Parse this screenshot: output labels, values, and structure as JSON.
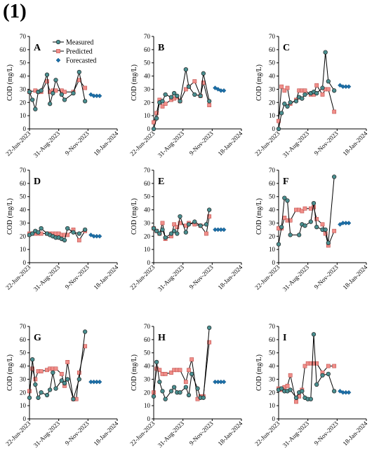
{
  "figure_label": "(1)",
  "colors": {
    "measured_fill": "#4a8f90",
    "predicted_fill": "#f08f8a",
    "forecast_fill": "#1c6fa8",
    "marker_stroke": "#222222"
  },
  "chart_data": [
    {
      "panel": "A",
      "type": "line",
      "ylabel": "COD (mg/L)",
      "ylim": [
        0,
        70
      ],
      "yticks": [
        0,
        10,
        20,
        30,
        40,
        50,
        60,
        70
      ],
      "xticks": [
        "22-Jun-2023",
        "31-Aug-2023",
        "9-Nov-2023",
        "18-Jan-2024"
      ],
      "legend": [
        "Measured",
        "Predicted",
        "Forecasted"
      ],
      "legend_position": "top-center",
      "series": [
        {
          "name": "Measured",
          "x": [
            "2023-06-22",
            "2023-06-29",
            "2023-07-06",
            "2023-07-13",
            "2023-07-20",
            "2023-08-03",
            "2023-08-10",
            "2023-08-17",
            "2023-08-24",
            "2023-09-07",
            "2023-09-14",
            "2023-10-05",
            "2023-10-19",
            "2023-11-02"
          ],
          "y": [
            28,
            22,
            15,
            28,
            29,
            41,
            19,
            27,
            37,
            26,
            22,
            27,
            43,
            21
          ]
        },
        {
          "name": "Predicted",
          "x": [
            "2023-06-22",
            "2023-07-06",
            "2023-07-13",
            "2023-07-20",
            "2023-08-03",
            "2023-08-10",
            "2023-08-17",
            "2023-08-24",
            "2023-09-07",
            "2023-09-14",
            "2023-10-05",
            "2023-10-19",
            "2023-11-02"
          ],
          "y": [
            28,
            29,
            28,
            28,
            36,
            28,
            29,
            29,
            29,
            28,
            28,
            37,
            31
          ]
        },
        {
          "name": "Forecasted",
          "x": [
            "2023-11-16",
            "2023-11-23",
            "2023-11-30",
            "2023-12-07"
          ],
          "y": [
            26,
            25,
            25,
            25
          ]
        }
      ]
    },
    {
      "panel": "B",
      "type": "line",
      "ylabel": "COD (mg/L)",
      "ylim": [
        0,
        70
      ],
      "yticks": [
        0,
        10,
        20,
        30,
        40,
        50,
        60,
        70
      ],
      "xticks": [
        "22-Jun-2023",
        "31-Aug-2023",
        "9-Nov-2023",
        "18-Jan-2024"
      ],
      "series": [
        {
          "name": "Measured",
          "x": [
            "2023-06-22",
            "2023-06-29",
            "2023-07-06",
            "2023-07-13",
            "2023-07-20",
            "2023-08-03",
            "2023-08-10",
            "2023-08-17",
            "2023-08-24",
            "2023-09-07",
            "2023-09-14",
            "2023-09-28",
            "2023-10-12",
            "2023-10-19",
            "2023-11-02"
          ],
          "y": [
            0,
            8,
            20,
            21,
            26,
            24,
            27,
            25,
            21,
            45,
            32,
            26,
            25,
            42,
            21
          ]
        },
        {
          "name": "Predicted",
          "x": [
            "2023-06-22",
            "2023-06-29",
            "2023-07-06",
            "2023-07-13",
            "2023-07-20",
            "2023-08-03",
            "2023-08-10",
            "2023-08-17",
            "2023-08-24",
            "2023-09-07",
            "2023-09-14",
            "2023-09-28",
            "2023-10-12",
            "2023-10-19",
            "2023-11-02"
          ],
          "y": [
            5,
            12,
            22,
            17,
            19,
            22,
            23,
            24,
            21,
            30,
            32,
            36,
            25,
            35,
            18
          ]
        },
        {
          "name": "Forecasted",
          "x": [
            "2023-11-16",
            "2023-11-23",
            "2023-11-30",
            "2023-12-07"
          ],
          "y": [
            31,
            30,
            29,
            29
          ]
        }
      ]
    },
    {
      "panel": "C",
      "type": "line",
      "ylabel": "COD (mg/L)",
      "ylim": [
        0,
        70
      ],
      "yticks": [
        0,
        10,
        20,
        30,
        40,
        50,
        60,
        70
      ],
      "xticks": [
        "22-Jun-2023",
        "31-Aug-2023",
        "9-Nov-2023",
        "18-Jan-2024"
      ],
      "series": [
        {
          "name": "Measured",
          "x": [
            "2023-06-22",
            "2023-06-29",
            "2023-07-06",
            "2023-07-13",
            "2023-07-20",
            "2023-08-03",
            "2023-08-10",
            "2023-08-17",
            "2023-08-24",
            "2023-09-07",
            "2023-09-14",
            "2023-09-21",
            "2023-10-05",
            "2023-10-12",
            "2023-10-19",
            "2023-11-02"
          ],
          "y": [
            0,
            12,
            19,
            17,
            20,
            21,
            24,
            23,
            26,
            27,
            28,
            27,
            31,
            58,
            36,
            29
          ]
        },
        {
          "name": "Predicted",
          "x": [
            "2023-06-22",
            "2023-06-29",
            "2023-07-06",
            "2023-07-13",
            "2023-07-20",
            "2023-08-03",
            "2023-08-10",
            "2023-08-17",
            "2023-08-24",
            "2023-09-07",
            "2023-09-14",
            "2023-09-21",
            "2023-10-05",
            "2023-10-12",
            "2023-10-19",
            "2023-11-02"
          ],
          "y": [
            6,
            32,
            29,
            31,
            19,
            22,
            29,
            29,
            29,
            26,
            26,
            33,
            26,
            30,
            30,
            13
          ]
        },
        {
          "name": "Forecasted",
          "x": [
            "2023-11-16",
            "2023-11-23",
            "2023-11-30",
            "2023-12-07"
          ],
          "y": [
            33,
            32,
            32,
            32
          ]
        }
      ]
    },
    {
      "panel": "D",
      "type": "line",
      "ylabel": "COD (mg/L)",
      "ylim": [
        0,
        70
      ],
      "yticks": [
        0,
        10,
        20,
        30,
        40,
        50,
        60,
        70
      ],
      "xticks": [
        "22-Jun-2023",
        "31-Aug-2023",
        "9-Nov-2023",
        "18-Jan-2024"
      ],
      "series": [
        {
          "name": "Measured",
          "x": [
            "2023-06-22",
            "2023-06-29",
            "2023-07-06",
            "2023-07-13",
            "2023-07-20",
            "2023-08-03",
            "2023-08-10",
            "2023-08-17",
            "2023-08-24",
            "2023-08-31",
            "2023-09-07",
            "2023-09-14",
            "2023-09-21",
            "2023-10-05",
            "2023-10-19",
            "2023-11-02"
          ],
          "y": [
            21,
            22,
            24,
            23,
            26,
            22,
            21,
            20,
            19,
            19,
            18,
            17,
            26,
            23,
            22,
            25
          ]
        },
        {
          "name": "Predicted",
          "x": [
            "2023-06-22",
            "2023-06-29",
            "2023-07-06",
            "2023-07-13",
            "2023-07-20",
            "2023-08-03",
            "2023-08-10",
            "2023-08-17",
            "2023-08-24",
            "2023-08-31",
            "2023-09-07",
            "2023-09-14",
            "2023-09-21",
            "2023-10-05",
            "2023-10-19",
            "2023-11-02"
          ],
          "y": [
            22,
            22,
            22,
            22,
            22,
            22,
            22,
            22,
            22,
            22,
            21,
            21,
            21,
            25,
            17,
            24
          ]
        },
        {
          "name": "Forecasted",
          "x": [
            "2023-11-16",
            "2023-11-23",
            "2023-11-30",
            "2023-12-07"
          ],
          "y": [
            21,
            20,
            20,
            20
          ]
        }
      ]
    },
    {
      "panel": "E",
      "type": "line",
      "ylabel": "COD (mg/L)",
      "ylim": [
        0,
        70
      ],
      "yticks": [
        0,
        10,
        20,
        30,
        40,
        50,
        60,
        70
      ],
      "xticks": [
        "22-Jun-2023",
        "31-Aug-2023",
        "9-Nov-2023",
        "18-Jan-2024"
      ],
      "series": [
        {
          "name": "Measured",
          "x": [
            "2023-06-22",
            "2023-06-29",
            "2023-07-06",
            "2023-07-13",
            "2023-07-20",
            "2023-08-03",
            "2023-08-10",
            "2023-08-17",
            "2023-08-24",
            "2023-09-07",
            "2023-09-14",
            "2023-09-28",
            "2023-10-12",
            "2023-10-26",
            "2023-11-02"
          ],
          "y": [
            26,
            24,
            22,
            25,
            19,
            22,
            24,
            22,
            35,
            23,
            29,
            31,
            28,
            29,
            40
          ]
        },
        {
          "name": "Predicted",
          "x": [
            "2023-06-22",
            "2023-06-29",
            "2023-07-06",
            "2023-07-13",
            "2023-07-20",
            "2023-08-03",
            "2023-08-10",
            "2023-08-17",
            "2023-08-24",
            "2023-09-07",
            "2023-09-14",
            "2023-09-28",
            "2023-10-12",
            "2023-10-26",
            "2023-11-02"
          ],
          "y": [
            26,
            24,
            22,
            30,
            18,
            20,
            29,
            27,
            30,
            28,
            30,
            29,
            28,
            22,
            35
          ]
        },
        {
          "name": "Forecasted",
          "x": [
            "2023-11-16",
            "2023-11-23",
            "2023-11-30",
            "2023-12-07"
          ],
          "y": [
            25,
            25,
            25,
            25
          ]
        }
      ]
    },
    {
      "panel": "F",
      "type": "line",
      "ylabel": "COD (mg/L)",
      "ylim": [
        0,
        70
      ],
      "yticks": [
        0,
        10,
        20,
        30,
        40,
        50,
        60,
        70
      ],
      "xticks": [
        "22-Jun-2023",
        "31-Aug-2023",
        "9-Nov-2023",
        "18-Jan-2024"
      ],
      "series": [
        {
          "name": "Measured",
          "x": [
            "2023-06-22",
            "2023-06-29",
            "2023-07-06",
            "2023-07-13",
            "2023-07-20",
            "2023-08-10",
            "2023-08-17",
            "2023-08-24",
            "2023-09-07",
            "2023-09-14",
            "2023-09-21",
            "2023-10-05",
            "2023-10-12",
            "2023-10-19",
            "2023-11-02"
          ],
          "y": [
            14,
            27,
            49,
            47,
            21,
            21,
            29,
            28,
            31,
            45,
            27,
            25,
            25,
            15,
            65
          ]
        },
        {
          "name": "Predicted",
          "x": [
            "2023-06-22",
            "2023-06-29",
            "2023-07-06",
            "2023-07-13",
            "2023-07-20",
            "2023-08-03",
            "2023-08-10",
            "2023-08-17",
            "2023-08-24",
            "2023-09-07",
            "2023-09-14",
            "2023-09-21",
            "2023-10-05",
            "2023-10-12",
            "2023-10-19",
            "2023-11-02"
          ],
          "y": [
            26,
            26,
            34,
            32,
            32,
            40,
            40,
            39,
            41,
            41,
            42,
            33,
            29,
            22,
            13,
            24
          ]
        },
        {
          "name": "Forecasted",
          "x": [
            "2023-11-16",
            "2023-11-23",
            "2023-11-30",
            "2023-12-07"
          ],
          "y": [
            29,
            30,
            30,
            30
          ]
        }
      ]
    },
    {
      "panel": "G",
      "type": "line",
      "ylabel": "COD (mg/L)",
      "ylim": [
        0,
        70
      ],
      "yticks": [
        0,
        10,
        20,
        30,
        40,
        50,
        60,
        70
      ],
      "xticks": [
        "22-Jun-2023",
        "31-Aug-2023",
        "9-Nov-2023",
        "18-Jan-2024"
      ],
      "series": [
        {
          "name": "Measured",
          "x": [
            "2023-06-22",
            "2023-06-29",
            "2023-07-06",
            "2023-07-13",
            "2023-07-20",
            "2023-08-03",
            "2023-08-10",
            "2023-08-17",
            "2023-08-24",
            "2023-09-07",
            "2023-09-14",
            "2023-09-21",
            "2023-10-05",
            "2023-10-19",
            "2023-11-02"
          ],
          "y": [
            16,
            45,
            26,
            16,
            20,
            18,
            22,
            35,
            23,
            29,
            27,
            30,
            15,
            30,
            66
          ]
        },
        {
          "name": "Predicted",
          "x": [
            "2023-06-22",
            "2023-06-29",
            "2023-07-06",
            "2023-07-13",
            "2023-07-20",
            "2023-08-03",
            "2023-08-10",
            "2023-08-17",
            "2023-08-24",
            "2023-09-07",
            "2023-09-14",
            "2023-09-21",
            "2023-10-05",
            "2023-10-12",
            "2023-10-19",
            "2023-11-02"
          ],
          "y": [
            21,
            38,
            30,
            36,
            36,
            37,
            38,
            38,
            38,
            34,
            25,
            43,
            15,
            15,
            35,
            55
          ]
        },
        {
          "name": "Forecasted",
          "x": [
            "2023-11-16",
            "2023-11-23",
            "2023-11-30",
            "2023-12-07"
          ],
          "y": [
            28,
            28,
            28,
            28
          ]
        }
      ]
    },
    {
      "panel": "H",
      "type": "line",
      "ylabel": "COD (mg/L)",
      "ylim": [
        0,
        70
      ],
      "yticks": [
        0,
        10,
        20,
        30,
        40,
        50,
        60,
        70
      ],
      "xticks": [
        "22-Jun-2023",
        "31-Aug-2023",
        "9-Nov-2023",
        "18-Jan-2024"
      ],
      "series": [
        {
          "name": "Measured",
          "x": [
            "2023-06-22",
            "2023-06-29",
            "2023-07-06",
            "2023-07-13",
            "2023-07-20",
            "2023-08-03",
            "2023-08-10",
            "2023-08-17",
            "2023-08-24",
            "2023-09-07",
            "2023-09-14",
            "2023-09-21",
            "2023-10-05",
            "2023-10-12",
            "2023-10-19",
            "2023-11-02"
          ],
          "y": [
            17,
            43,
            28,
            21,
            15,
            21,
            24,
            20,
            20,
            24,
            18,
            34,
            23,
            16,
            16,
            69
          ]
        },
        {
          "name": "Predicted",
          "x": [
            "2023-06-22",
            "2023-06-29",
            "2023-07-06",
            "2023-07-13",
            "2023-07-20",
            "2023-08-03",
            "2023-08-10",
            "2023-08-17",
            "2023-08-24",
            "2023-09-07",
            "2023-09-14",
            "2023-09-21",
            "2023-10-05",
            "2023-10-12",
            "2023-10-19",
            "2023-11-02"
          ],
          "y": [
            20,
            38,
            37,
            34,
            34,
            35,
            37,
            37,
            37,
            28,
            37,
            45,
            15,
            17,
            17,
            58
          ]
        },
        {
          "name": "Forecasted",
          "x": [
            "2023-11-16",
            "2023-11-23",
            "2023-11-30",
            "2023-12-07"
          ],
          "y": [
            28,
            28,
            28,
            28
          ]
        }
      ]
    },
    {
      "panel": "I",
      "type": "line",
      "ylabel": "COD (mg/L)",
      "ylim": [
        0,
        70
      ],
      "yticks": [
        0,
        10,
        20,
        30,
        40,
        50,
        60,
        70
      ],
      "xticks": [
        "22-Jun-2023",
        "31-Aug-2023",
        "9-Nov-2023",
        "18-Jan-2024"
      ],
      "series": [
        {
          "name": "Measured",
          "x": [
            "2023-06-22",
            "2023-06-29",
            "2023-07-06",
            "2023-07-13",
            "2023-07-20",
            "2023-08-03",
            "2023-08-10",
            "2023-08-17",
            "2023-08-24",
            "2023-08-31",
            "2023-09-07",
            "2023-09-14",
            "2023-09-21",
            "2023-10-05",
            "2023-10-19",
            "2023-11-02"
          ],
          "y": [
            22,
            23,
            21,
            21,
            22,
            16,
            20,
            21,
            16,
            15,
            15,
            64,
            26,
            33,
            34,
            21
          ]
        },
        {
          "name": "Predicted",
          "x": [
            "2023-06-22",
            "2023-06-29",
            "2023-07-06",
            "2023-07-13",
            "2023-07-20",
            "2023-08-03",
            "2023-08-10",
            "2023-08-17",
            "2023-08-24",
            "2023-08-31",
            "2023-09-07",
            "2023-09-14",
            "2023-09-21",
            "2023-10-05",
            "2023-10-19",
            "2023-11-02"
          ],
          "y": [
            23,
            22,
            24,
            25,
            33,
            13,
            17,
            22,
            40,
            42,
            42,
            42,
            42,
            35,
            40,
            40
          ]
        },
        {
          "name": "Forecasted",
          "x": [
            "2023-11-16",
            "2023-11-23",
            "2023-11-30",
            "2023-12-07"
          ],
          "y": [
            21,
            20,
            20,
            20
          ]
        }
      ]
    }
  ]
}
